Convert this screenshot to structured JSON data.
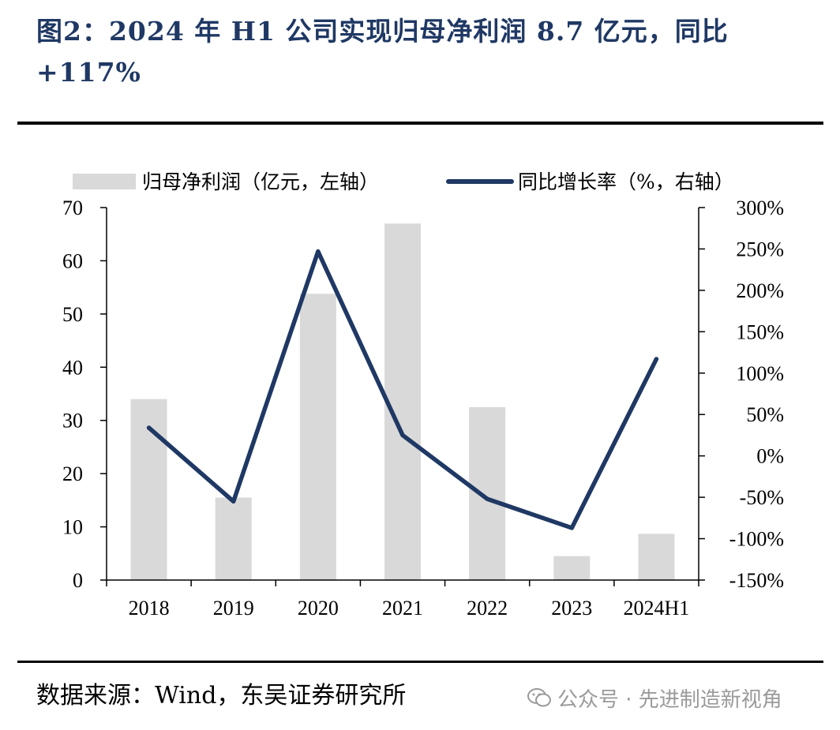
{
  "title": "图2：2024 年 H1 公司实现归母净利润 8.7 亿元，同比+117%",
  "source": "数据来源：Wind，东吴证券研究所",
  "watermark": "公众号 · 先进制造新视角",
  "colors": {
    "title": "#1f3864",
    "bar": "#d9d9d9",
    "line": "#1f3864",
    "axis": "#000000",
    "watermark": "#9a9a9a"
  },
  "chart_data": {
    "type": "bar",
    "categories": [
      "2018",
      "2019",
      "2020",
      "2021",
      "2022",
      "2023",
      "2024H1"
    ],
    "series": [
      {
        "name": "归母净利润（亿元，左轴）",
        "type": "bar",
        "axis": "left",
        "values": [
          34.0,
          15.5,
          53.8,
          67.0,
          32.5,
          4.5,
          8.7
        ]
      },
      {
        "name": "同比增长率（%，右轴）",
        "type": "line",
        "axis": "right",
        "values": [
          34,
          -55,
          247,
          25,
          -52,
          -87,
          117
        ]
      }
    ],
    "y_left": {
      "min": 0,
      "max": 70,
      "ticks": [
        0,
        10,
        20,
        30,
        40,
        50,
        60,
        70
      ],
      "tick_labels": [
        "0",
        "10",
        "20",
        "30",
        "40",
        "50",
        "60",
        "70"
      ]
    },
    "y_right": {
      "min": -150,
      "max": 300,
      "ticks": [
        -150,
        -100,
        -50,
        0,
        50,
        100,
        150,
        200,
        250,
        300
      ],
      "tick_labels": [
        "-150%",
        "-100%",
        "-50%",
        "0%",
        "50%",
        "100%",
        "150%",
        "200%",
        "250%",
        "300%"
      ]
    },
    "legend_position": "top",
    "grid": false
  }
}
